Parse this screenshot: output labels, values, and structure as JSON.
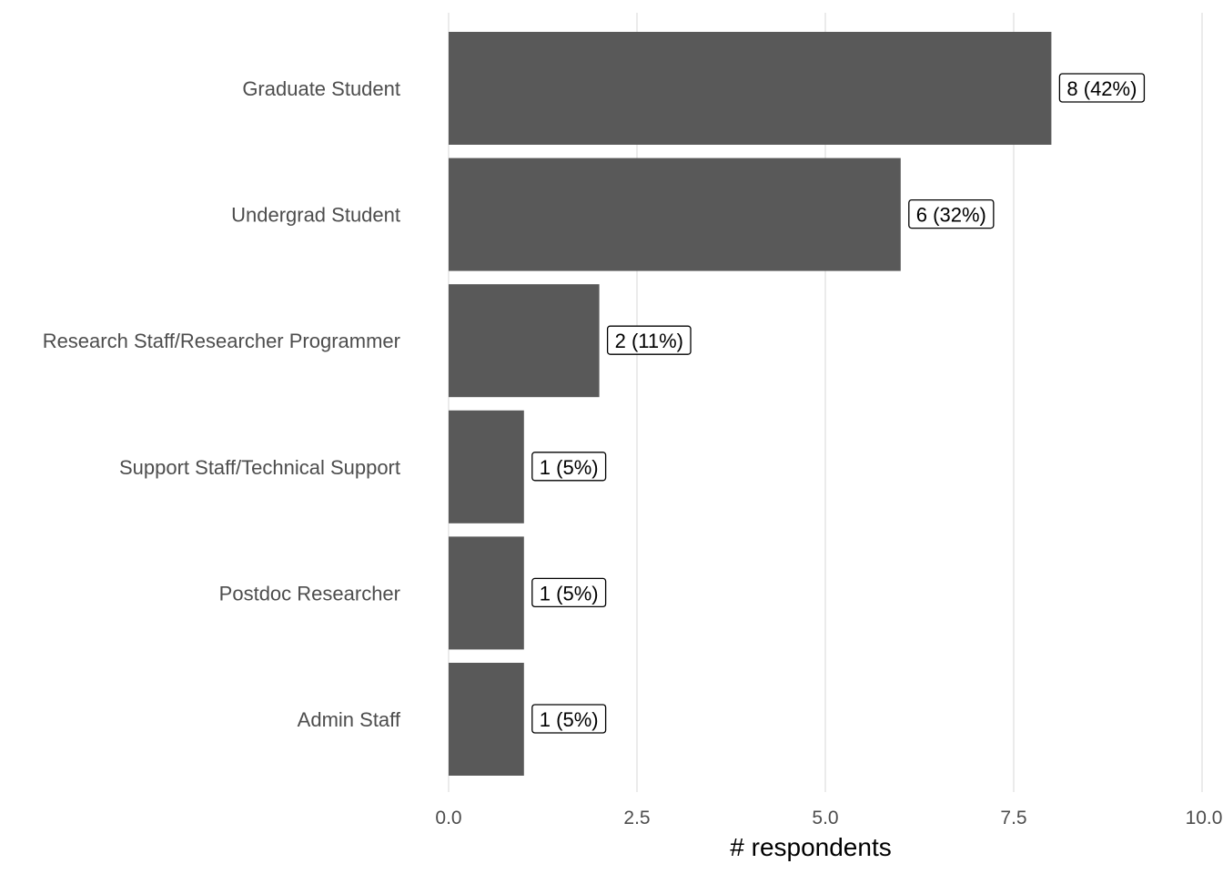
{
  "chart_data": {
    "type": "bar",
    "orientation": "horizontal",
    "categories": [
      "Graduate Student",
      "Undergrad Student",
      "Research Staff/Researcher Programmer",
      "Support Staff/Technical Support",
      "Postdoc Researcher",
      "Admin Staff"
    ],
    "values": [
      8,
      6,
      2,
      1,
      1,
      1
    ],
    "data_labels": [
      "8 (42%)",
      "6 (32%)",
      "2 (11%)",
      "1 (5%)",
      "1 (5%)",
      "1 (5%)"
    ],
    "title": "",
    "xlabel": "# respondents",
    "ylabel": "",
    "xlim": [
      0,
      10
    ],
    "x_ticks": [
      0,
      2.5,
      5,
      7.5,
      10
    ],
    "x_tick_labels": [
      "0.0",
      "2.5",
      "5.0",
      "7.5",
      "10.0"
    ],
    "grid": true,
    "bar_color": "#595959",
    "grid_color": "#ebebeb",
    "label_text_color": "#4d4d4d"
  }
}
